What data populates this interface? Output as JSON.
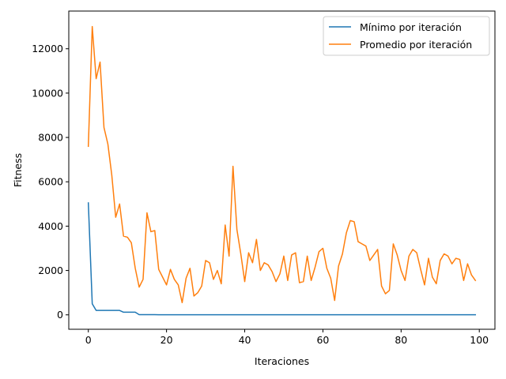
{
  "chart_data": {
    "type": "line",
    "title": "",
    "xlabel": "Iteraciones",
    "ylabel": "Fitness",
    "xlim": [
      -5,
      104
    ],
    "ylim": [
      -650,
      13700
    ],
    "xticks": [
      0,
      20,
      40,
      60,
      80,
      100
    ],
    "yticks": [
      0,
      2000,
      4000,
      6000,
      8000,
      10000,
      12000
    ],
    "grid": false,
    "legend_position": "top-right",
    "series": [
      {
        "name": "Mínimo por iteración",
        "color": "#1f77b4",
        "x": [
          0,
          1,
          2,
          3,
          4,
          5,
          6,
          7,
          8,
          9,
          10,
          11,
          12,
          13,
          14,
          15,
          16,
          17,
          18,
          19,
          20,
          21,
          22,
          23,
          24,
          25,
          26,
          27,
          28,
          29,
          30,
          31,
          32,
          33,
          34,
          35,
          36,
          37,
          38,
          39,
          40,
          41,
          42,
          43,
          44,
          45,
          46,
          47,
          48,
          49,
          50,
          51,
          52,
          53,
          54,
          55,
          56,
          57,
          58,
          59,
          60,
          61,
          62,
          63,
          64,
          65,
          66,
          67,
          68,
          69,
          70,
          71,
          72,
          73,
          74,
          75,
          76,
          77,
          78,
          79,
          80,
          81,
          82,
          83,
          84,
          85,
          86,
          87,
          88,
          89,
          90,
          91,
          92,
          93,
          94,
          95,
          96,
          97,
          98,
          99
        ],
        "values": [
          5050,
          500,
          200,
          200,
          200,
          200,
          200,
          200,
          200,
          120,
          120,
          120,
          120,
          10,
          10,
          10,
          10,
          10,
          5,
          5,
          5,
          5,
          5,
          5,
          5,
          5,
          5,
          5,
          5,
          5,
          5,
          5,
          5,
          5,
          5,
          5,
          5,
          5,
          5,
          5,
          5,
          5,
          5,
          5,
          5,
          5,
          5,
          5,
          5,
          5,
          5,
          5,
          5,
          5,
          5,
          5,
          5,
          5,
          5,
          5,
          5,
          5,
          5,
          5,
          5,
          5,
          5,
          5,
          5,
          5,
          5,
          5,
          5,
          5,
          5,
          5,
          5,
          5,
          5,
          5,
          5,
          5,
          5,
          5,
          5,
          5,
          5,
          5,
          5,
          5,
          5,
          5,
          5,
          5,
          5,
          5,
          5,
          5,
          5,
          5
        ]
      },
      {
        "name": "Promedio por iteración",
        "color": "#ff7f0e",
        "x": [
          0,
          1,
          2,
          3,
          4,
          5,
          6,
          7,
          8,
          9,
          10,
          11,
          12,
          13,
          14,
          15,
          16,
          17,
          18,
          19,
          20,
          21,
          22,
          23,
          24,
          25,
          26,
          27,
          28,
          29,
          30,
          31,
          32,
          33,
          34,
          35,
          36,
          37,
          38,
          39,
          40,
          41,
          42,
          43,
          44,
          45,
          46,
          47,
          48,
          49,
          50,
          51,
          52,
          53,
          54,
          55,
          56,
          57,
          58,
          59,
          60,
          61,
          62,
          63,
          64,
          65,
          66,
          67,
          68,
          69,
          70,
          71,
          72,
          73,
          74,
          75,
          76,
          77,
          78,
          79,
          80,
          81,
          82,
          83,
          84,
          85,
          86,
          87,
          88,
          89,
          90,
          91,
          92,
          93,
          94,
          95,
          96,
          97,
          98,
          99
        ],
        "values": [
          7600,
          13000,
          10650,
          11400,
          8450,
          7700,
          6300,
          4400,
          5000,
          3550,
          3500,
          3250,
          2100,
          1250,
          1600,
          4600,
          3750,
          3800,
          2050,
          1700,
          1350,
          2050,
          1600,
          1350,
          550,
          1650,
          2100,
          850,
          1000,
          1300,
          2450,
          2350,
          1600,
          2000,
          1400,
          4050,
          2650,
          6700,
          3850,
          2750,
          1500,
          2800,
          2350,
          3400,
          2000,
          2350,
          2250,
          1950,
          1500,
          1850,
          2650,
          1550,
          2700,
          2800,
          1450,
          1500,
          2650,
          1550,
          2150,
          2850,
          3000,
          2100,
          1650,
          650,
          2200,
          2750,
          3700,
          4250,
          4200,
          3300,
          3200,
          3100,
          2450,
          2700,
          2950,
          1300,
          950,
          1100,
          3200,
          2700,
          2000,
          1550,
          2650,
          2950,
          2800,
          2050,
          1350,
          2550,
          1700,
          1400,
          2450,
          2750,
          2650,
          2300,
          2550,
          2500,
          1550,
          2300,
          1800,
          1550
        ]
      }
    ]
  }
}
